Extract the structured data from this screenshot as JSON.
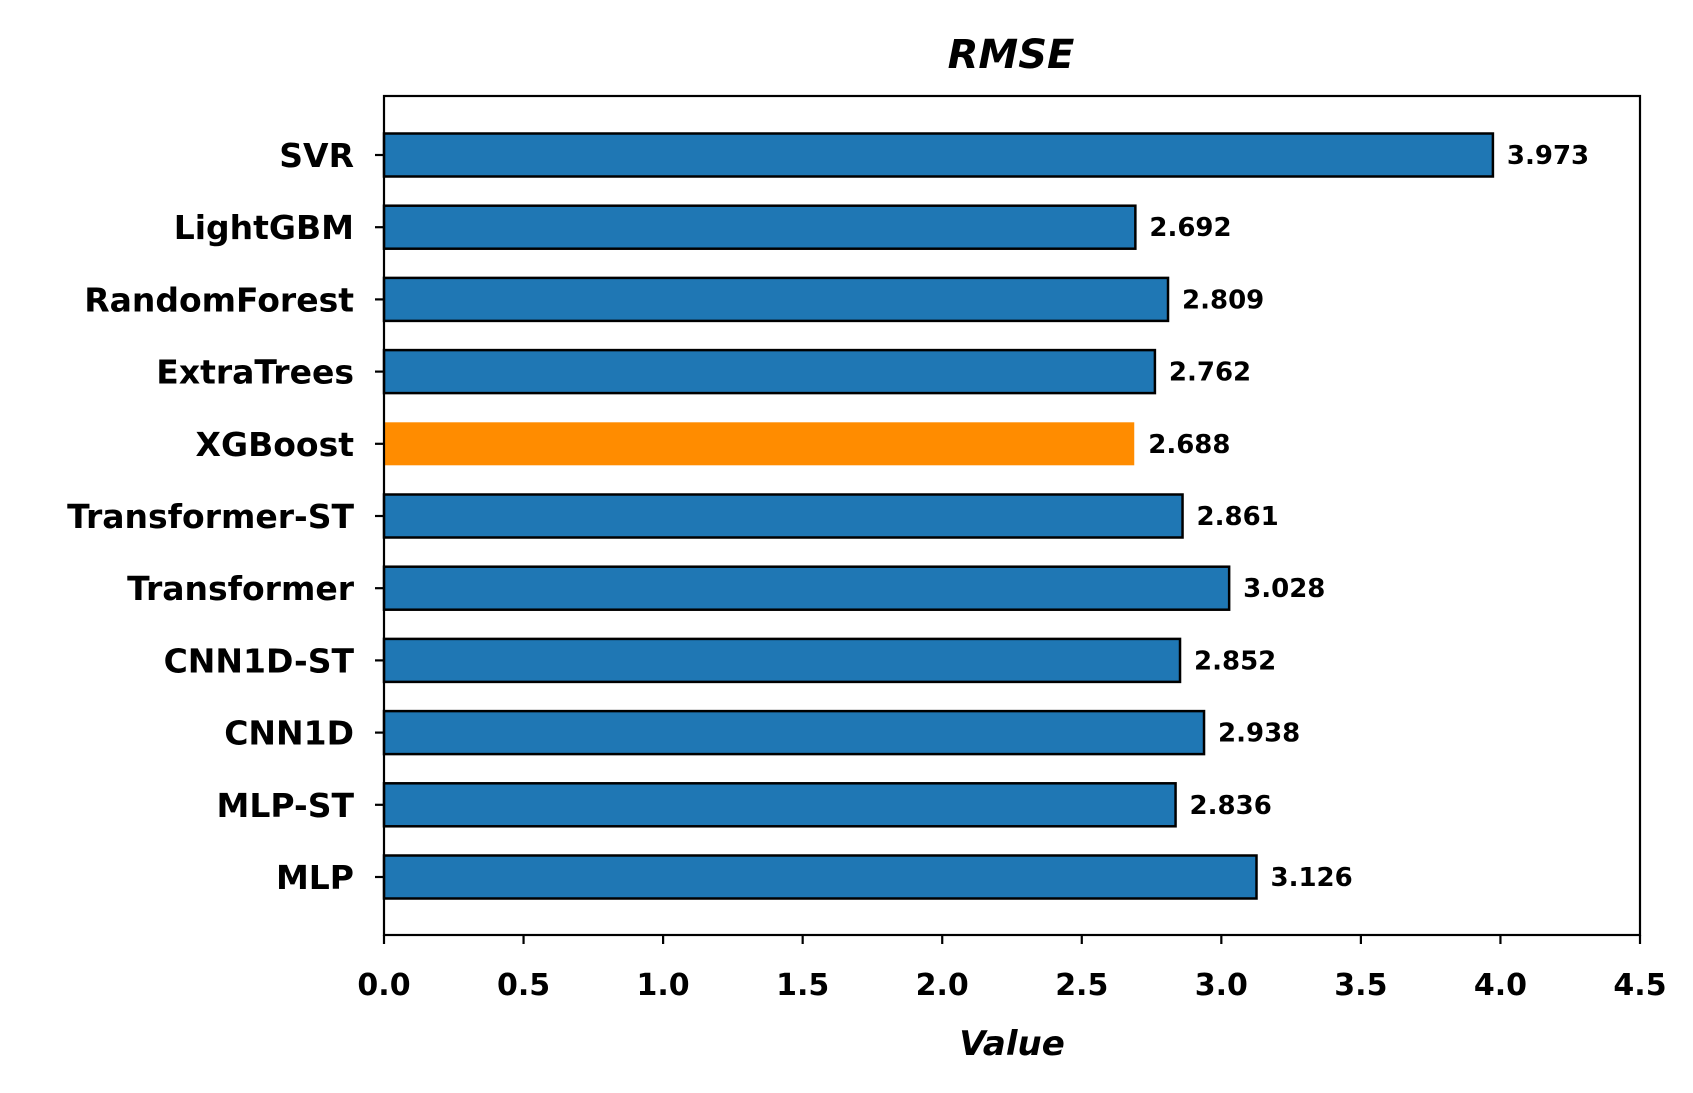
{
  "chart_data": {
    "type": "bar",
    "orientation": "horizontal",
    "title": "RMSE",
    "xlabel": "Value",
    "ylabel": "",
    "xlim": [
      0,
      4.5
    ],
    "xticks": [
      "0.0",
      "0.5",
      "1.0",
      "1.5",
      "2.0",
      "2.5",
      "3.0",
      "3.5",
      "4.0",
      "4.5"
    ],
    "grid": false,
    "categories": [
      "SVR",
      "LightGBM",
      "RandomForest",
      "ExtraTrees",
      "XGBoost",
      "Transformer-ST",
      "Transformer",
      "CNN1D-ST",
      "CNN1D",
      "MLP-ST",
      "MLP"
    ],
    "values": [
      3.973,
      2.692,
      2.809,
      2.762,
      2.688,
      2.861,
      3.028,
      2.852,
      2.938,
      2.836,
      3.126
    ],
    "value_labels": [
      "3.973",
      "2.692",
      "2.809",
      "2.762",
      "2.688",
      "2.861",
      "3.028",
      "2.852",
      "2.938",
      "2.836",
      "3.126"
    ],
    "highlight_category": "XGBoost",
    "colors": {
      "bar": "#1f77b4",
      "highlight": "#ff8c00",
      "edge": "#000000"
    }
  }
}
